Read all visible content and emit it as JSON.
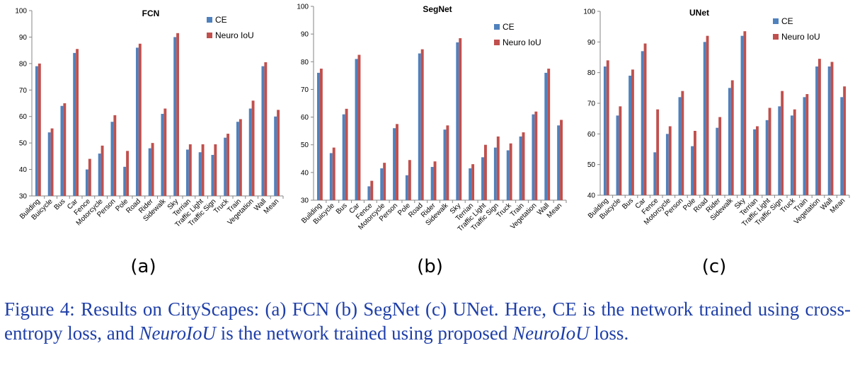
{
  "colors": {
    "ce": "#4f81bd",
    "neuro": "#c0504d",
    "axis": "#868686",
    "caption": "#1f3fa8"
  },
  "chart_data": [
    {
      "type": "bar",
      "title": "FCN",
      "panel_label": "(a)",
      "ylim": [
        30,
        100
      ],
      "yticks": [
        30,
        40,
        50,
        60,
        70,
        80,
        90,
        100
      ],
      "legend": "top-right",
      "categories": [
        "Building",
        "Buicycle",
        "Bus",
        "Car",
        "Fence",
        "Motorcycle",
        "Person",
        "Pole",
        "Road",
        "Rider",
        "Sidewalk",
        "Sky",
        "Terrian",
        "Traffic Light",
        "Traffic Sign",
        "Truck",
        "Train",
        "Vegetation",
        "Wall",
        "Mean"
      ],
      "series": [
        {
          "name": "CE",
          "values": [
            79,
            54,
            64,
            84,
            40,
            46,
            58,
            41,
            86,
            48,
            61,
            90,
            47.5,
            46.5,
            45.5,
            52,
            58,
            63,
            79,
            60
          ]
        },
        {
          "name": "Neuro IoU",
          "values": [
            80,
            55.5,
            65,
            85.5,
            44,
            49,
            60.5,
            47,
            87.5,
            50,
            63,
            91.5,
            49.5,
            49.5,
            49.5,
            53.5,
            59,
            66,
            80.5,
            62.5
          ]
        }
      ]
    },
    {
      "type": "bar",
      "title": "SegNet",
      "panel_label": "(b)",
      "ylim": [
        30,
        100
      ],
      "yticks": [
        30,
        40,
        50,
        60,
        70,
        80,
        90,
        100
      ],
      "legend": "top-right",
      "categories": [
        "Building",
        "Buicycle",
        "Bus",
        "Car",
        "Fence",
        "Motorcycle",
        "Person",
        "Pole",
        "Road",
        "Rider",
        "Sidewalk",
        "Sky",
        "Terrian",
        "Traffic Light",
        "Traffic Sign",
        "Truck",
        "Train",
        "Vegetation",
        "Wall",
        "Mean"
      ],
      "series": [
        {
          "name": "CE",
          "values": [
            76,
            47,
            61,
            81,
            35,
            41.5,
            56,
            39,
            83,
            42,
            55.5,
            87,
            41.5,
            45.5,
            49,
            48,
            53,
            61,
            76,
            57
          ]
        },
        {
          "name": "Neuro IoU",
          "values": [
            77.5,
            49,
            63,
            82.5,
            37,
            43.5,
            57.5,
            44.5,
            84.5,
            44,
            57,
            88.5,
            43,
            50,
            53,
            50.5,
            54.5,
            62,
            77.5,
            59
          ]
        }
      ]
    },
    {
      "type": "bar",
      "title": "UNet",
      "panel_label": "(c)",
      "ylim": [
        40,
        100
      ],
      "yticks": [
        40,
        50,
        60,
        70,
        80,
        90,
        100
      ],
      "legend": "top-right",
      "categories": [
        "Building",
        "Buicycle",
        "Bus",
        "Car",
        "Fence",
        "Motorcycle",
        "Person",
        "Pole",
        "Road",
        "Rider",
        "Sidewalk",
        "Sky",
        "Terrian",
        "Traffic Light",
        "Traffic Sign",
        "Truck",
        "Train",
        "Vegetation",
        "Wall",
        "Mean"
      ],
      "series": [
        {
          "name": "CE",
          "values": [
            82,
            66,
            79,
            87,
            54,
            60,
            72,
            56,
            90,
            62,
            75,
            92,
            61.5,
            64.5,
            69,
            66,
            72,
            82,
            82,
            72
          ]
        },
        {
          "name": "Neuro IoU",
          "values": [
            84,
            69,
            81,
            89.5,
            68,
            62.5,
            74,
            61,
            92,
            65.5,
            77.5,
            93.5,
            62.5,
            68.5,
            74,
            68,
            73,
            84.5,
            83.5,
            75.5
          ]
        }
      ]
    }
  ],
  "caption": {
    "prefix": "Figure 4:  Results on CityScapes:  (a) FCN (b) SegNet (c) UNet.  Here, CE is the network trained using cross-entropy loss, and ",
    "em1": "NeuroIoU",
    "middle": " is the network trained using proposed ",
    "em2": "NeuroIoU",
    "suffix": " loss."
  }
}
